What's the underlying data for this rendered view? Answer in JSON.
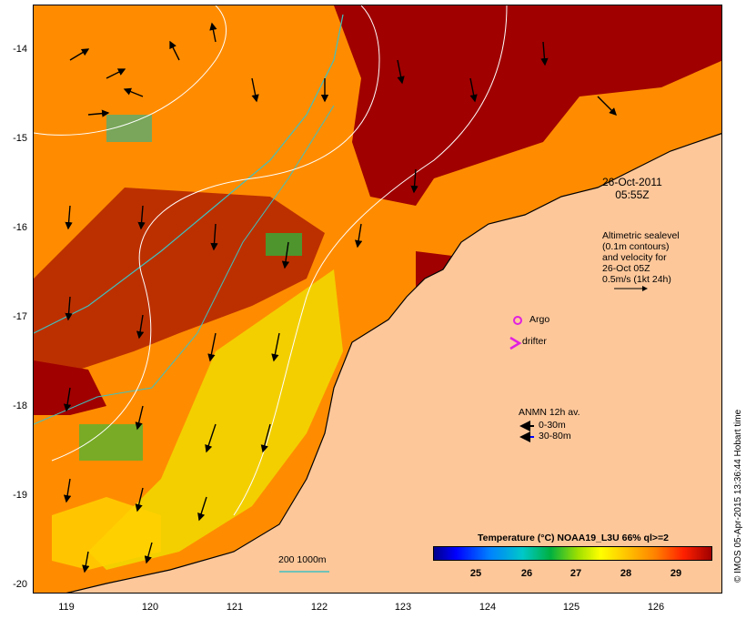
{
  "map": {
    "date_line1": "26-Oct-2011",
    "date_line2": "05:55Z",
    "altimetry_lines": [
      "Altimetric sealevel",
      "(0.1m contours)",
      "and velocity for",
      "26-Oct 05Z",
      "0.5m/s (1kt 24h)"
    ],
    "argo_label": "Argo",
    "drifter_label": "drifter",
    "anmn_title": "ANMN 12h av.",
    "anmn_shallow": "0-30m",
    "anmn_deep": "30-80m",
    "isobath_label": "200  1000m",
    "colorbar_title": "Temperature (°C) NOAA19_L3U 66% ql>=2",
    "colorbar_ticks": [
      "25",
      "26",
      "27",
      "28",
      "29"
    ],
    "side_label": "© IMOS 05-Apr-2015 13:36:44 Hobart time",
    "lat_ticks": [
      "-14",
      "-15",
      "-16",
      "-17",
      "-18",
      "-19",
      "-20"
    ],
    "lon_ticks": [
      "119",
      "120",
      "121",
      "122",
      "123",
      "124",
      "125",
      "126"
    ],
    "colors": {
      "land": "#fdc79a",
      "warm": "#a00000",
      "mid": "#ff8000",
      "cool": "#ffff00",
      "current_arrow": "#000000",
      "argo": "#e020e0",
      "anmn_deep": "#0000ff",
      "isobath": "#40c0c0"
    }
  }
}
